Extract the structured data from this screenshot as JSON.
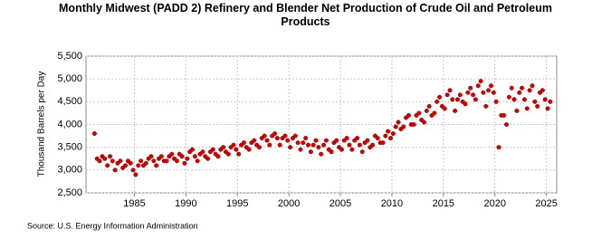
{
  "chart_data": {
    "type": "scatter",
    "title": "Monthly Midwest (PADD 2) Refinery and Blender Net Production of Crude Oil and Petroleum Products",
    "ylabel": "Thousand Barrels per Day",
    "source": "Source: U.S. Energy Information Administration",
    "xlim": [
      1980.3,
      2026
    ],
    "ylim": [
      2500,
      5500
    ],
    "xticks": [
      1985,
      1990,
      1995,
      2000,
      2005,
      2010,
      2015,
      2020,
      2025
    ],
    "yticks": [
      {
        "value": 2500,
        "label": "2,500"
      },
      {
        "value": 3000,
        "label": "3,000"
      },
      {
        "value": 3500,
        "label": "3,500"
      },
      {
        "value": 4000,
        "label": "4,000"
      },
      {
        "value": 4500,
        "label": "4,500"
      },
      {
        "value": 5000,
        "label": "5,000"
      },
      {
        "value": 5500,
        "label": "5,500"
      }
    ],
    "grid": true,
    "color": "#cc0000",
    "x": [
      1981.125,
      1981.375,
      1981.625,
      1981.875,
      1982.125,
      1982.375,
      1982.625,
      1982.875,
      1983.125,
      1983.375,
      1983.625,
      1983.875,
      1984.125,
      1984.375,
      1984.625,
      1984.875,
      1985.125,
      1985.375,
      1985.625,
      1985.875,
      1986.125,
      1986.375,
      1986.625,
      1986.875,
      1987.125,
      1987.375,
      1987.625,
      1987.875,
      1988.125,
      1988.375,
      1988.625,
      1988.875,
      1989.125,
      1989.375,
      1989.625,
      1989.875,
      1990.125,
      1990.375,
      1990.625,
      1990.875,
      1991.125,
      1991.375,
      1991.625,
      1991.875,
      1992.125,
      1992.375,
      1992.625,
      1992.875,
      1993.125,
      1993.375,
      1993.625,
      1993.875,
      1994.125,
      1994.375,
      1994.625,
      1994.875,
      1995.125,
      1995.375,
      1995.625,
      1995.875,
      1996.125,
      1996.375,
      1996.625,
      1996.875,
      1997.125,
      1997.375,
      1997.625,
      1997.875,
      1998.125,
      1998.375,
      1998.625,
      1998.875,
      1999.125,
      1999.375,
      1999.625,
      1999.875,
      2000.125,
      2000.375,
      2000.625,
      2000.875,
      2001.125,
      2001.375,
      2001.625,
      2001.875,
      2002.125,
      2002.375,
      2002.625,
      2002.875,
      2003.125,
      2003.375,
      2003.625,
      2003.875,
      2004.125,
      2004.375,
      2004.625,
      2004.875,
      2005.125,
      2005.375,
      2005.625,
      2005.875,
      2006.125,
      2006.375,
      2006.625,
      2006.875,
      2007.125,
      2007.375,
      2007.625,
      2007.875,
      2008.125,
      2008.375,
      2008.625,
      2008.875,
      2009.125,
      2009.375,
      2009.625,
      2009.875,
      2010.125,
      2010.375,
      2010.625,
      2010.875,
      2011.125,
      2011.375,
      2011.625,
      2011.875,
      2012.125,
      2012.375,
      2012.625,
      2012.875,
      2013.125,
      2013.375,
      2013.625,
      2013.875,
      2014.125,
      2014.375,
      2014.625,
      2014.875,
      2015.125,
      2015.375,
      2015.625,
      2015.875,
      2016.125,
      2016.375,
      2016.625,
      2016.875,
      2017.125,
      2017.375,
      2017.625,
      2017.875,
      2018.125,
      2018.375,
      2018.625,
      2018.875,
      2019.125,
      2019.375,
      2019.625,
      2019.875,
      2020.125,
      2020.375,
      2020.625,
      2020.875,
      2021.125,
      2021.375,
      2021.625,
      2021.875,
      2022.125,
      2022.375,
      2022.625,
      2022.875,
      2023.125,
      2023.375,
      2023.625,
      2023.875,
      2024.125,
      2024.375,
      2024.625,
      2024.875,
      2025.125,
      2025.375
    ],
    "values": [
      3800,
      3250,
      3200,
      3300,
      3250,
      3100,
      3300,
      3200,
      3000,
      3150,
      3200,
      3050,
      3100,
      3200,
      3150,
      3000,
      2900,
      3100,
      3200,
      3100,
      3150,
      3250,
      3300,
      3200,
      3100,
      3250,
      3300,
      3200,
      3200,
      3300,
      3350,
      3250,
      3200,
      3350,
      3300,
      3150,
      3250,
      3400,
      3450,
      3300,
      3200,
      3350,
      3400,
      3300,
      3250,
      3400,
      3450,
      3350,
      3300,
      3450,
      3500,
      3400,
      3350,
      3500,
      3550,
      3450,
      3350,
      3550,
      3600,
      3500,
      3450,
      3600,
      3650,
      3550,
      3500,
      3700,
      3750,
      3650,
      3550,
      3750,
      3800,
      3700,
      3550,
      3700,
      3750,
      3650,
      3500,
      3700,
      3750,
      3600,
      3450,
      3600,
      3700,
      3550,
      3400,
      3550,
      3650,
      3500,
      3350,
      3550,
      3650,
      3450,
      3400,
      3600,
      3650,
      3500,
      3450,
      3650,
      3700,
      3550,
      3450,
      3650,
      3700,
      3550,
      3400,
      3600,
      3650,
      3500,
      3550,
      3750,
      3700,
      3600,
      3600,
      3750,
      3850,
      3700,
      3800,
      3950,
      4050,
      3900,
      3950,
      4150,
      4200,
      4000,
      4000,
      4200,
      4250,
      4100,
      4050,
      4300,
      4400,
      4200,
      4250,
      4500,
      4600,
      4400,
      4350,
      4650,
      4750,
      4550,
      4300,
      4550,
      4650,
      4500,
      4450,
      4700,
      4800,
      4650,
      4550,
      4850,
      4950,
      4700,
      4400,
      4750,
      4850,
      4700,
      4500,
      3500,
      4200,
      4200,
      4000,
      4600,
      4800,
      4550,
      4300,
      4700,
      4800,
      4550,
      4350,
      4750,
      4850,
      4500,
      4400,
      4700,
      4750,
      4550,
      4350,
      4500
    ]
  }
}
